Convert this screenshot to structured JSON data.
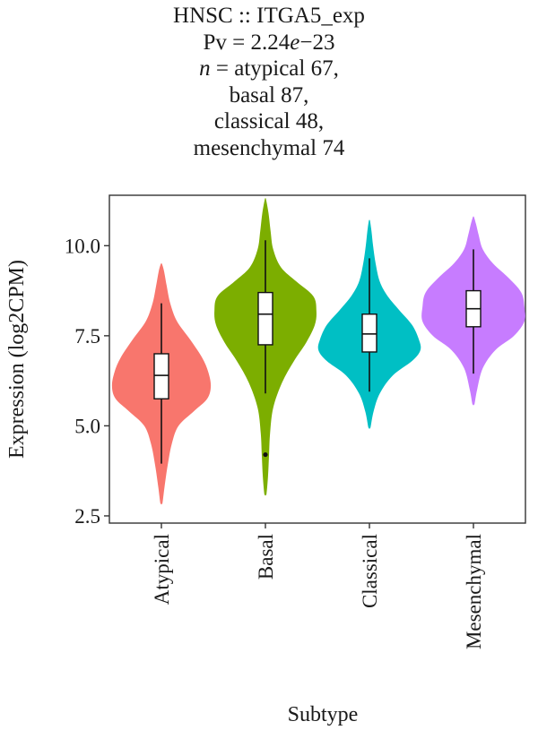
{
  "title": {
    "line1": "HNSC :: ITGA5_exp",
    "line2_prefix": "Pv = 2.24",
    "line2_e": "e",
    "line2_suffix": "−23",
    "line3_n": "n",
    "line3_rest": " = atypical 67,",
    "line4": "basal 87,",
    "line5": "classical 48,",
    "line6": "mesenchymal 74"
  },
  "chart_data": {
    "type": "violin",
    "xlabel": "Subtype",
    "ylabel": "Expression (log2CPM)",
    "ylim": [
      2.3,
      11.4
    ],
    "yticks": [
      2.5,
      5.0,
      7.5,
      10.0
    ],
    "ytick_labels": [
      "2.5",
      "5.0",
      "7.5",
      "10.0"
    ],
    "categories": [
      "Atypical",
      "Basal",
      "Classical",
      "Mesenchymal"
    ],
    "groups": [
      {
        "name": "Atypical",
        "color": "#F8766D",
        "n": 67,
        "min": 2.85,
        "max": 9.5,
        "whisker_low": 3.95,
        "q1": 5.75,
        "median": 6.4,
        "q3": 7.0,
        "whisker_high": 8.4,
        "outliers": [],
        "profile": [
          [
            2.85,
            0.02
          ],
          [
            3.3,
            0.06
          ],
          [
            3.9,
            0.12
          ],
          [
            4.5,
            0.2
          ],
          [
            5.0,
            0.33
          ],
          [
            5.4,
            0.62
          ],
          [
            5.75,
            0.88
          ],
          [
            6.1,
            0.95
          ],
          [
            6.5,
            0.9
          ],
          [
            6.9,
            0.78
          ],
          [
            7.4,
            0.55
          ],
          [
            7.9,
            0.3
          ],
          [
            8.4,
            0.17
          ],
          [
            8.9,
            0.1
          ],
          [
            9.3,
            0.05
          ],
          [
            9.5,
            0.01
          ]
        ]
      },
      {
        "name": "Basal",
        "color": "#7CAE00",
        "n": 87,
        "min": 3.1,
        "max": 11.3,
        "whisker_low": 5.9,
        "q1": 7.25,
        "median": 8.1,
        "q3": 8.7,
        "whisker_high": 10.15,
        "outliers": [
          4.2
        ],
        "profile": [
          [
            3.1,
            0.02
          ],
          [
            3.6,
            0.05
          ],
          [
            4.2,
            0.07
          ],
          [
            4.8,
            0.09
          ],
          [
            5.5,
            0.15
          ],
          [
            6.2,
            0.32
          ],
          [
            6.8,
            0.55
          ],
          [
            7.3,
            0.78
          ],
          [
            7.8,
            0.95
          ],
          [
            8.2,
            0.98
          ],
          [
            8.6,
            0.92
          ],
          [
            9.0,
            0.6
          ],
          [
            9.4,
            0.3
          ],
          [
            9.9,
            0.15
          ],
          [
            10.4,
            0.1
          ],
          [
            10.9,
            0.06
          ],
          [
            11.3,
            0.01
          ]
        ]
      },
      {
        "name": "Classical",
        "color": "#00BFC4",
        "n": 48,
        "min": 4.95,
        "max": 10.7,
        "whisker_low": 5.95,
        "q1": 7.05,
        "median": 7.55,
        "q3": 8.1,
        "whisker_high": 9.65,
        "outliers": [],
        "profile": [
          [
            4.95,
            0.02
          ],
          [
            5.4,
            0.08
          ],
          [
            5.9,
            0.2
          ],
          [
            6.4,
            0.45
          ],
          [
            6.8,
            0.82
          ],
          [
            7.1,
            0.98
          ],
          [
            7.4,
            0.95
          ],
          [
            7.8,
            0.82
          ],
          [
            8.2,
            0.58
          ],
          [
            8.6,
            0.35
          ],
          [
            9.0,
            0.2
          ],
          [
            9.5,
            0.12
          ],
          [
            10.0,
            0.07
          ],
          [
            10.4,
            0.04
          ],
          [
            10.7,
            0.01
          ]
        ]
      },
      {
        "name": "Mesenchymal",
        "color": "#C77CFF",
        "n": 74,
        "min": 5.6,
        "max": 10.8,
        "whisker_low": 6.45,
        "q1": 7.75,
        "median": 8.25,
        "q3": 8.75,
        "whisker_high": 9.9,
        "outliers": [],
        "profile": [
          [
            5.6,
            0.02
          ],
          [
            6.0,
            0.07
          ],
          [
            6.6,
            0.18
          ],
          [
            7.1,
            0.42
          ],
          [
            7.5,
            0.78
          ],
          [
            7.9,
            0.98
          ],
          [
            8.3,
            0.98
          ],
          [
            8.7,
            0.92
          ],
          [
            9.1,
            0.68
          ],
          [
            9.5,
            0.38
          ],
          [
            9.9,
            0.18
          ],
          [
            10.3,
            0.1
          ],
          [
            10.6,
            0.05
          ],
          [
            10.8,
            0.01
          ]
        ]
      }
    ]
  }
}
